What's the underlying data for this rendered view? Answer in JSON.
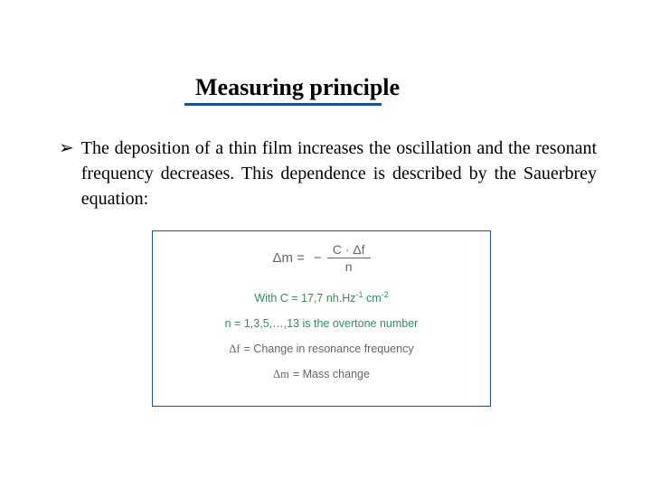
{
  "title": "Measuring principle",
  "bullet": {
    "marker": "➢",
    "text": "The deposition of a thin film increases the oscillation and the resonant frequency decreases. This dependence is described by the Sauerbrey equation:"
  },
  "equation": {
    "main_lhs": "Δm =",
    "minus": "−",
    "frac_num": "C · Δf",
    "frac_den": "n",
    "c_line_prefix": "With C = 17,7 nh.Hz",
    "c_line_exp1": "-1",
    "c_line_mid": " cm",
    "c_line_exp2": "-2",
    "n_line": "n = 1,3,5,…,13 is the overtone number",
    "df_lhs": "Δf",
    "df_rhs": " = Change in resonance frequency",
    "dm_lhs": "Δm",
    "dm_rhs": " = Mass change"
  },
  "colors": {
    "accent": "#1f4e9b",
    "eqn_gray": "#666666",
    "eqn_green": "#2f8f5b",
    "bg": "#ffffff"
  }
}
